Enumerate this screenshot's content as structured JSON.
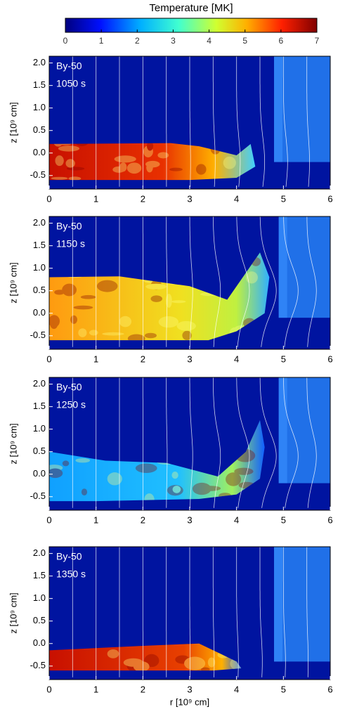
{
  "chart_data": [
    {
      "type": "colorbar",
      "title": "Temperature [MK]",
      "xlim": [
        0,
        7
      ],
      "xticks": [
        0,
        1,
        2,
        3,
        4,
        5,
        6,
        7
      ]
    },
    {
      "type": "image",
      "label": "By-50",
      "time": "1050 s",
      "ylabel": "z [10⁹ cm]",
      "xlim": [
        0,
        6
      ],
      "xticks": [
        0,
        1,
        2,
        3,
        4,
        5,
        6
      ],
      "ylim": [
        -0.8,
        2.15
      ],
      "yticks": [
        -0.5,
        {
          "value": 0,
          "label": "0.0"
        },
        0.5,
        {
          "value": 1,
          "label": "1.0"
        },
        1.5,
        {
          "value": 2,
          "label": "2.0"
        }
      ]
    },
    {
      "type": "image",
      "label": "By-50",
      "time": "1150 s",
      "ylabel": "z [10⁹ cm]",
      "xlim": [
        0,
        6
      ],
      "xticks": [
        0,
        1,
        2,
        3,
        4,
        5,
        6
      ],
      "ylim": [
        -0.8,
        2.15
      ],
      "yticks": [
        -0.5,
        {
          "value": 0,
          "label": "0.0"
        },
        0.5,
        {
          "value": 1,
          "label": "1.0"
        },
        1.5,
        {
          "value": 2,
          "label": "2.0"
        }
      ]
    },
    {
      "type": "image",
      "label": "By-50",
      "time": "1250 s",
      "ylabel": "z [10⁹ cm]",
      "xlim": [
        0,
        6
      ],
      "xticks": [
        0,
        1,
        2,
        3,
        4,
        5,
        6
      ],
      "ylim": [
        -0.8,
        2.15
      ],
      "yticks": [
        -0.5,
        {
          "value": 0,
          "label": "0.0"
        },
        0.5,
        {
          "value": 1,
          "label": "1.0"
        },
        1.5,
        {
          "value": 2,
          "label": "2.0"
        }
      ]
    },
    {
      "type": "image",
      "label": "By-50",
      "time": "1350 s",
      "ylabel": "z [10⁹ cm]",
      "xlabel": "r [10⁹ cm]",
      "xlim": [
        0,
        6
      ],
      "xticks": [
        0,
        1,
        2,
        3,
        4,
        5,
        6
      ],
      "ylim": [
        -0.8,
        2.15
      ],
      "yticks": [
        -0.5,
        {
          "value": 0,
          "label": "0.0"
        },
        0.5,
        {
          "value": 1,
          "label": "1.0"
        },
        1.5,
        {
          "value": 2,
          "label": "2.0"
        }
      ]
    }
  ]
}
